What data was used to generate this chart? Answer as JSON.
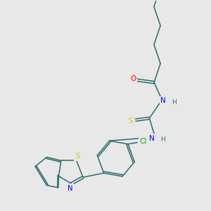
{
  "background_color": "#e8e8e8",
  "bond_color": "#2d6b6b",
  "atom_colors": {
    "O": "#ff0000",
    "N": "#0000ff",
    "S": "#cccc00",
    "Cl": "#00aa00",
    "C": "#2d6b6b",
    "H": "#2d6b6b"
  },
  "figsize": [
    3.0,
    3.0
  ],
  "dpi": 100
}
